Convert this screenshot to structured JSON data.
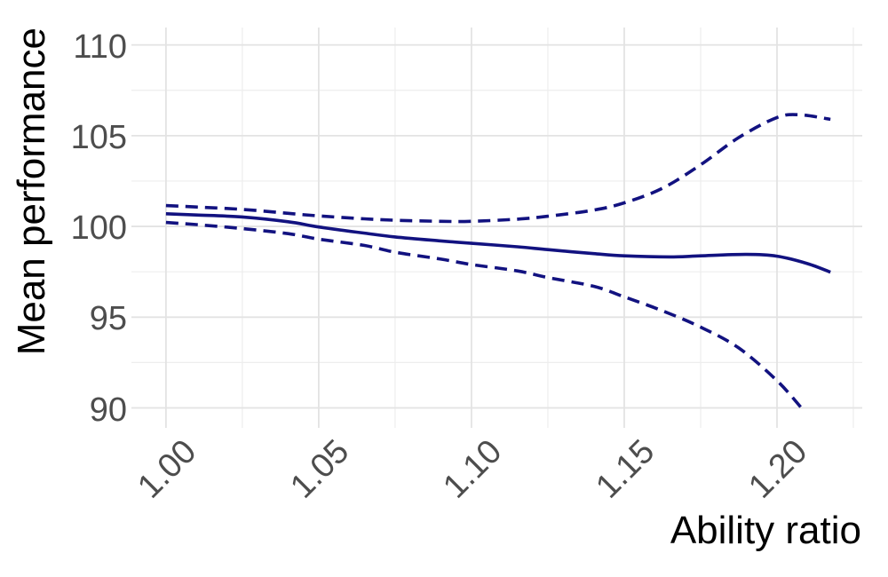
{
  "chart_data": {
    "type": "line",
    "title": "",
    "xlabel": "Ability ratio",
    "ylabel": "Mean performance",
    "grid": "major+minor",
    "legend": "none",
    "x": {
      "range": [
        0.9887,
        1.2279
      ],
      "major_ticks": [
        1.0,
        1.05,
        1.1,
        1.15,
        1.2
      ],
      "tick_labels": [
        "1.00",
        "1.05",
        "1.10",
        "1.15",
        "1.20"
      ],
      "minor_ticks": [
        1.025,
        1.075,
        1.125,
        1.175,
        1.225
      ]
    },
    "y": {
      "range": [
        88.9,
        110.96
      ],
      "major_ticks": [
        90,
        95,
        100,
        105,
        110
      ],
      "tick_labels": [
        "90",
        "95",
        "100",
        "105",
        "110"
      ],
      "minor_ticks": [
        92.5,
        97.5,
        102.5,
        107.5
      ]
    },
    "series": [
      {
        "name": "mean",
        "style": "solid",
        "points": [
          [
            1.0,
            100.7
          ],
          [
            1.01,
            100.63
          ],
          [
            1.025,
            100.52
          ],
          [
            1.04,
            100.26
          ],
          [
            1.05,
            99.97
          ],
          [
            1.065,
            99.63
          ],
          [
            1.075,
            99.42
          ],
          [
            1.09,
            99.2
          ],
          [
            1.1,
            99.07
          ],
          [
            1.115,
            98.88
          ],
          [
            1.125,
            98.72
          ],
          [
            1.14,
            98.5
          ],
          [
            1.15,
            98.38
          ],
          [
            1.165,
            98.32
          ],
          [
            1.175,
            98.38
          ],
          [
            1.19,
            98.46
          ],
          [
            1.2,
            98.36
          ],
          [
            1.21,
            97.95
          ],
          [
            1.2175,
            97.48
          ]
        ]
      },
      {
        "name": "upper_band",
        "style": "dashed",
        "points": [
          [
            1.0,
            101.15
          ],
          [
            1.01,
            101.07
          ],
          [
            1.025,
            100.94
          ],
          [
            1.04,
            100.72
          ],
          [
            1.05,
            100.58
          ],
          [
            1.065,
            100.42
          ],
          [
            1.075,
            100.34
          ],
          [
            1.09,
            100.28
          ],
          [
            1.1,
            100.28
          ],
          [
            1.115,
            100.4
          ],
          [
            1.125,
            100.56
          ],
          [
            1.14,
            100.9
          ],
          [
            1.15,
            101.3
          ],
          [
            1.1625,
            102.1
          ],
          [
            1.175,
            103.4
          ],
          [
            1.1875,
            104.9
          ],
          [
            1.2,
            106.0
          ],
          [
            1.2075,
            106.15
          ],
          [
            1.2175,
            105.9
          ]
        ]
      },
      {
        "name": "lower_band",
        "style": "dashed",
        "points": [
          [
            1.0,
            100.22
          ],
          [
            1.01,
            100.1
          ],
          [
            1.025,
            99.88
          ],
          [
            1.04,
            99.6
          ],
          [
            1.05,
            99.3
          ],
          [
            1.065,
            98.95
          ],
          [
            1.075,
            98.58
          ],
          [
            1.09,
            98.2
          ],
          [
            1.1,
            97.9
          ],
          [
            1.115,
            97.55
          ],
          [
            1.125,
            97.18
          ],
          [
            1.14,
            96.7
          ],
          [
            1.15,
            96.12
          ],
          [
            1.1625,
            95.35
          ],
          [
            1.175,
            94.45
          ],
          [
            1.1875,
            93.3
          ],
          [
            1.2,
            91.5
          ],
          [
            1.208,
            90.0
          ]
        ]
      }
    ]
  },
  "colors": {
    "line": "#121280",
    "axis_text": "#4d4d4d",
    "axis_title": "#000000",
    "grid_major": "#e3e3e3",
    "grid_minor": "#ededed",
    "background": "#ffffff"
  }
}
